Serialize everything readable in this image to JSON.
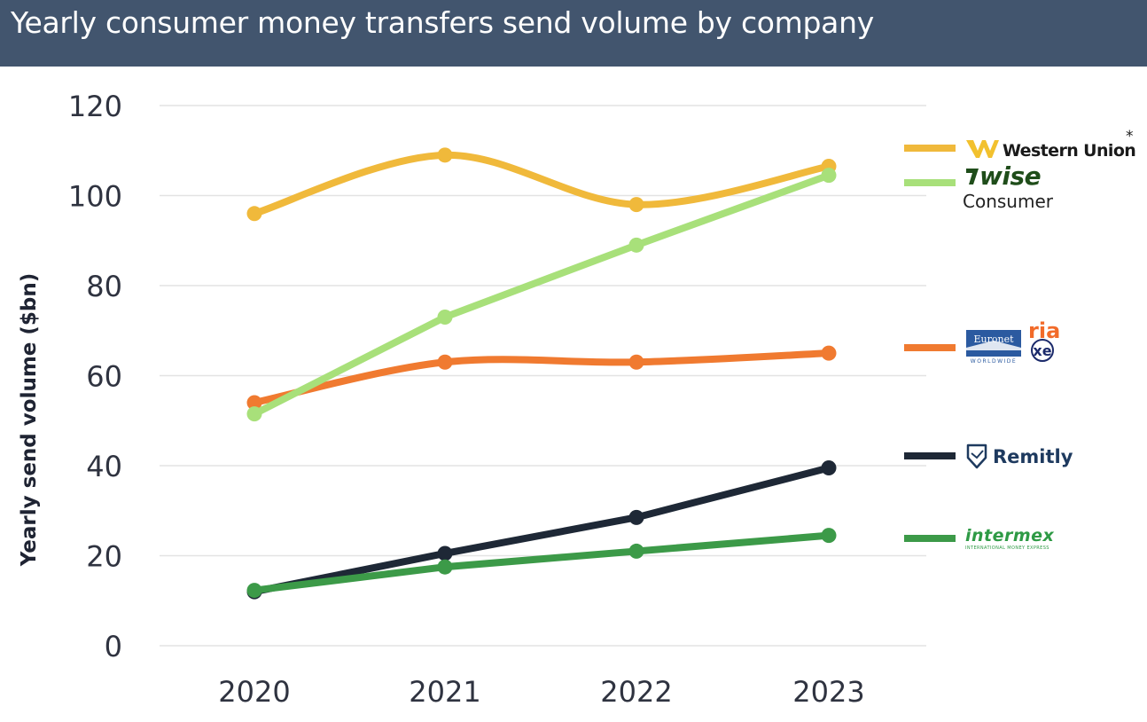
{
  "header": {
    "title": "Yearly consumer money transfers send volume by company"
  },
  "chart_data": {
    "type": "line",
    "title": "Yearly consumer money transfers send volume by company",
    "xlabel": "",
    "ylabel": "Yearly send volume ($bn)",
    "categories": [
      "2020",
      "2021",
      "2022",
      "2023"
    ],
    "ylim": [
      0,
      120
    ],
    "yticks": [
      0,
      20,
      40,
      60,
      80,
      100,
      120
    ],
    "grid": true,
    "legend_position": "right",
    "series": [
      {
        "key": "western-union",
        "name": "Western Union",
        "name_suffix": "*",
        "color": "#f0b93b",
        "values": [
          96,
          109,
          98,
          106.5
        ],
        "smooth": true
      },
      {
        "key": "wise",
        "name": "WISE",
        "name_sub": "Consumer",
        "color": "#a8e07a",
        "values": [
          51.5,
          73,
          89,
          104.5
        ],
        "smooth": false
      },
      {
        "key": "euronet",
        "name": "Euronet",
        "name_sub": "WORLDWIDE",
        "extra_names": [
          "ria",
          "xe"
        ],
        "color": "#f07a30",
        "values": [
          54,
          63,
          63,
          65
        ],
        "smooth": true
      },
      {
        "key": "remitly",
        "name": "Remitly",
        "color": "#1e2836",
        "values": [
          12,
          20.5,
          28.5,
          39.5
        ],
        "smooth": false
      },
      {
        "key": "intermex",
        "name": "intermex",
        "name_sub": "INTERNATIONAL MONEY EXPRESS",
        "color": "#3c9a48",
        "values": [
          12.3,
          17.5,
          21,
          24.5
        ],
        "smooth": false
      }
    ]
  }
}
